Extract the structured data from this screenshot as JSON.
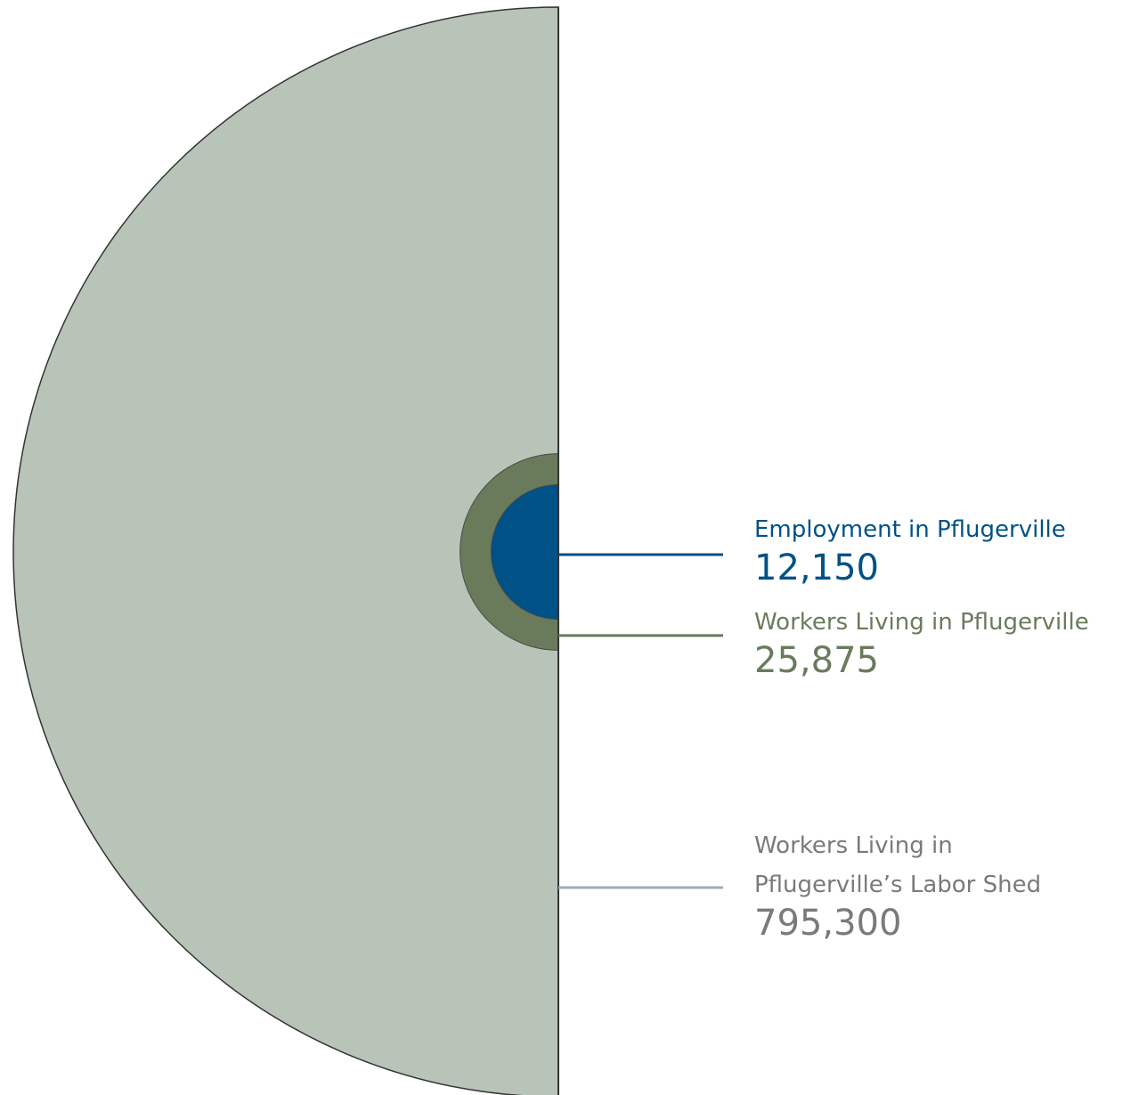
{
  "chart_data": {
    "type": "nested-semicircle",
    "title": "",
    "series": [
      {
        "name": "Workers Living in Pflugerville's Labor Shed",
        "label_lines": [
          "Workers Living in",
          "Pflugerville’s Labor Shed"
        ],
        "value": 795300,
        "value_label": "795,300",
        "color": "#b8c4b8",
        "text_color": "#7a7a7a",
        "leader_color": "#a3a9bd"
      },
      {
        "name": "Workers Living in Pflugerville",
        "label_lines": [
          "Workers Living in Pflugerville"
        ],
        "value": 25875,
        "value_label": "25,875",
        "color": "#6a7b5c",
        "text_color": "#6a7b5c",
        "leader_color": "#6a7b5c"
      },
      {
        "name": "Employment in Pflugerville",
        "label_lines": [
          "Employment in Pflugerville"
        ],
        "value": 12150,
        "value_label": "12,150",
        "color": "#005186",
        "text_color": "#005186",
        "leader_color": "#005186"
      }
    ]
  }
}
